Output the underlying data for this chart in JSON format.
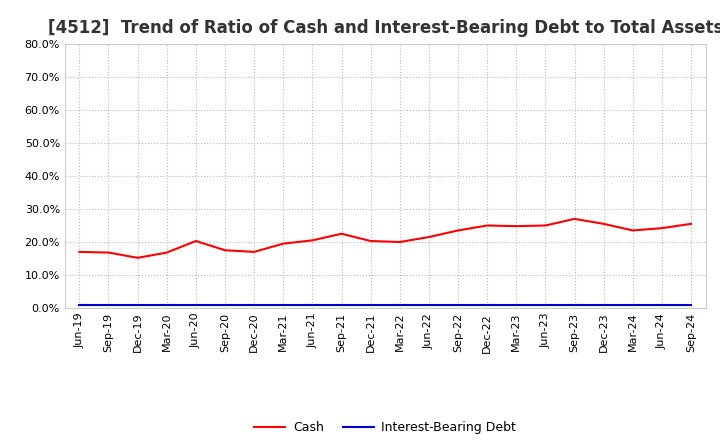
{
  "title": "[4512]  Trend of Ratio of Cash and Interest-Bearing Debt to Total Assets",
  "x_labels": [
    "Jun-19",
    "Sep-19",
    "Dec-19",
    "Mar-20",
    "Jun-20",
    "Sep-20",
    "Dec-20",
    "Mar-21",
    "Jun-21",
    "Sep-21",
    "Dec-21",
    "Mar-22",
    "Jun-22",
    "Sep-22",
    "Dec-22",
    "Mar-23",
    "Jun-23",
    "Sep-23",
    "Dec-23",
    "Mar-24",
    "Jun-24",
    "Sep-24"
  ],
  "cash": [
    17.0,
    16.8,
    15.2,
    16.8,
    20.3,
    17.5,
    17.0,
    19.5,
    20.5,
    22.5,
    20.3,
    20.0,
    21.5,
    23.5,
    25.0,
    24.8,
    25.0,
    27.0,
    25.5,
    23.5,
    24.2,
    25.5
  ],
  "interest_bearing_debt": [
    0.8,
    0.8,
    0.8,
    0.8,
    0.8,
    0.8,
    0.8,
    0.8,
    0.8,
    0.8,
    0.8,
    0.8,
    0.8,
    0.8,
    0.8,
    0.8,
    0.8,
    0.8,
    0.8,
    0.8,
    0.8,
    0.8
  ],
  "cash_color": "#ff0000",
  "debt_color": "#0000cc",
  "ylim": [
    0,
    80
  ],
  "yticks": [
    0,
    10,
    20,
    30,
    40,
    50,
    60,
    70,
    80
  ],
  "background_color": "#ffffff",
  "plot_bg_color": "#ffffff",
  "grid_color": "#bbbbbb",
  "title_fontsize": 12,
  "tick_fontsize": 8,
  "legend_labels": [
    "Cash",
    "Interest-Bearing Debt"
  ]
}
